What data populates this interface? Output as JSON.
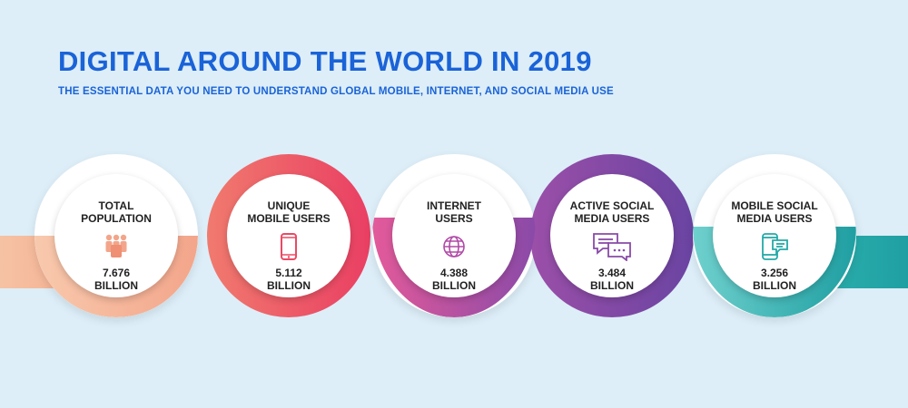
{
  "title": "DIGITAL AROUND THE WORLD IN 2019",
  "subtitle": "THE ESSENTIAL DATA YOU NEED TO UNDERSTAND GLOBAL MOBILE, INTERNET, AND SOCIAL MEDIA USE",
  "colors": {
    "title": "#1a63d8",
    "population": "#f4a98a",
    "mobile": "#ea5068",
    "internet": "#b94fa6",
    "social": "#7b4ba8",
    "mobile_social": "#25a9a8"
  },
  "stats": [
    {
      "label": "TOTAL\nPOPULATION",
      "value": "7.676",
      "unit": "BILLION",
      "icon": "people-icon"
    },
    {
      "label": "UNIQUE\nMOBILE USERS",
      "value": "5.112",
      "unit": "BILLION",
      "icon": "mobile-phone-icon"
    },
    {
      "label": "INTERNET\nUSERS",
      "value": "4.388",
      "unit": "BILLION",
      "icon": "globe-icon"
    },
    {
      "label": "ACTIVE SOCIAL\nMEDIA USERS",
      "value": "3.484",
      "unit": "BILLION",
      "icon": "chat-bubbles-icon"
    },
    {
      "label": "MOBILE SOCIAL\nMEDIA USERS",
      "value": "3.256",
      "unit": "BILLION",
      "icon": "phone-chat-icon"
    }
  ]
}
